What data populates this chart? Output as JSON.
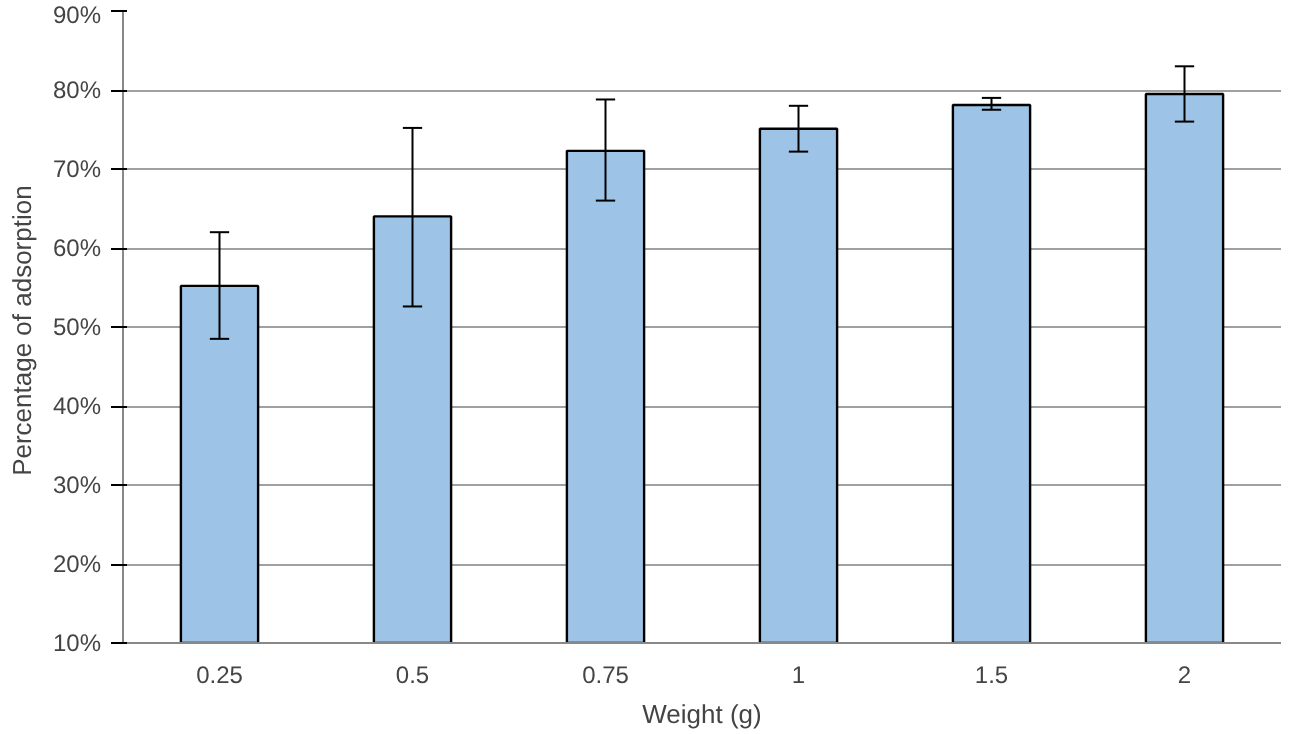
{
  "chart_data": {
    "type": "bar",
    "xlabel": "Weight (g)",
    "ylabel": "Percentage  of adsorption",
    "categories": [
      "0.25",
      "0.5",
      "0.75",
      "1",
      "1.5",
      "2"
    ],
    "values": [
      55.2,
      64,
      72.3,
      75.1,
      78.1,
      79.5
    ],
    "errors": [
      [
        48.5,
        62
      ],
      [
        52.6,
        75.2
      ],
      [
        66,
        78.8
      ],
      [
        72.2,
        78
      ],
      [
        77.5,
        79
      ],
      [
        76,
        83
      ]
    ],
    "color": "#9dc3e6",
    "ylim": [
      10,
      90
    ],
    "yticks": [
      {
        "value": 10,
        "label": "10%"
      },
      {
        "value": 20,
        "label": "20%"
      },
      {
        "value": 30,
        "label": "30%"
      },
      {
        "value": 40,
        "label": "40%"
      },
      {
        "value": 50,
        "label": "50%"
      },
      {
        "value": 60,
        "label": "60%"
      },
      {
        "value": 70,
        "label": "70%"
      },
      {
        "value": 80,
        "label": "80%"
      },
      {
        "value": 90,
        "label": "90%"
      }
    ],
    "grid": "y"
  }
}
